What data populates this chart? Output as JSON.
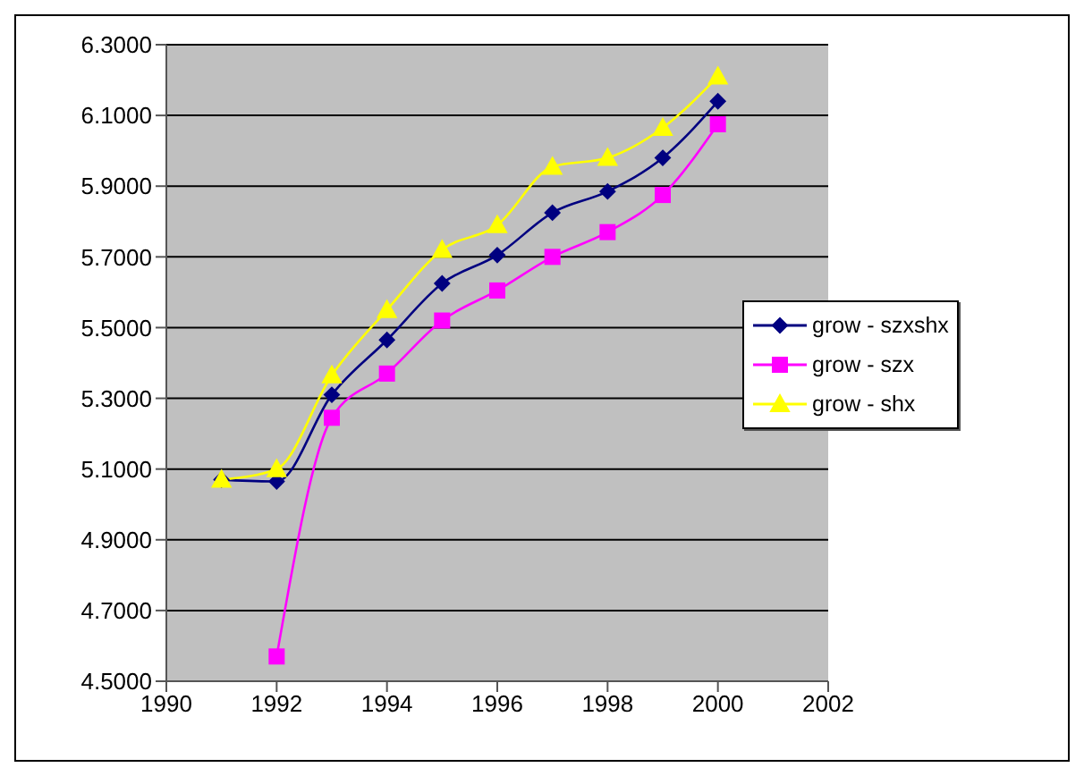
{
  "chart_data": {
    "type": "line",
    "x": [
      1991,
      1992,
      1993,
      1994,
      1995,
      1996,
      1997,
      1998,
      1999,
      2000
    ],
    "series": [
      {
        "name": "grow - szxshx",
        "color": "#000080",
        "marker": "diamond",
        "values": [
          5.07,
          5.065,
          5.31,
          5.465,
          5.625,
          5.705,
          5.825,
          5.885,
          5.98,
          6.14
        ]
      },
      {
        "name": "grow - szx",
        "color": "#ff00ff",
        "marker": "square",
        "values": [
          null,
          4.57,
          5.245,
          5.37,
          5.52,
          5.605,
          5.7,
          5.77,
          5.875,
          6.075
        ]
      },
      {
        "name": "grow - shx",
        "color": "#ffff00",
        "marker": "triangle",
        "values": [
          5.07,
          5.1,
          5.365,
          5.55,
          5.72,
          5.79,
          5.955,
          5.98,
          6.065,
          6.21
        ]
      }
    ],
    "xlim": [
      1990,
      2002
    ],
    "xticks": [
      1990,
      1992,
      1994,
      1996,
      1998,
      2000,
      2002
    ],
    "ylim": [
      4.5,
      6.3
    ],
    "yticks": [
      {
        "value": 4.5,
        "label": "4.5000"
      },
      {
        "value": 4.7,
        "label": "4.7000"
      },
      {
        "value": 4.9,
        "label": "4.9000"
      },
      {
        "value": 5.1,
        "label": "5.1000"
      },
      {
        "value": 5.3,
        "label": "5.3000"
      },
      {
        "value": 5.5,
        "label": "5.5000"
      },
      {
        "value": 5.7,
        "label": "5.7000"
      },
      {
        "value": 5.9,
        "label": "5.9000"
      },
      {
        "value": 6.1,
        "label": "6.1000"
      },
      {
        "value": 6.3,
        "label": "6.3000"
      }
    ],
    "grid": "y",
    "legend": "right"
  }
}
